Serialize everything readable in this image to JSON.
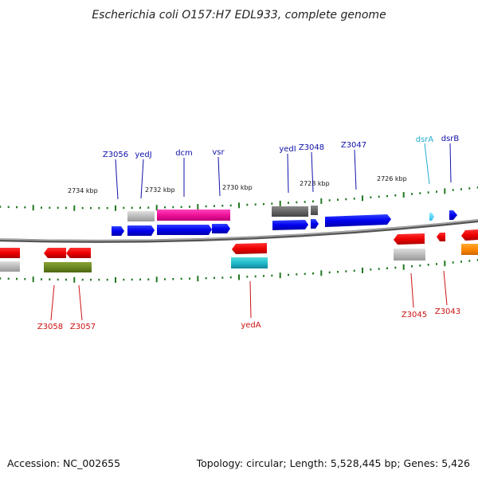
{
  "title": "Escherichia coli O157:H7 EDL933, complete genome",
  "footer": {
    "accession": "Accession: NC_002655",
    "summary": "Topology: circular; Length: 5,528,445 bp; Genes: 5,426"
  },
  "colors": {
    "plus_label": "#1111aa",
    "minus_label": "#cc1111",
    "cyan_label": "#22aacc",
    "backbone": "#888888",
    "tick": "#227722"
  },
  "kbp_labels": [
    "2734 kbp",
    "2732 kbp",
    "2730 kbp",
    "2728 kbp",
    "2726 kbp"
  ],
  "top_labels": [
    "Z3056",
    "yedJ",
    "dcm",
    "vsr",
    "yedI",
    "Z3048",
    "Z3047",
    "dsrA",
    "dsrB"
  ],
  "bottom_labels": [
    "Z3058",
    "Z3057",
    "yedA",
    "Z3045",
    "Z3043"
  ]
}
